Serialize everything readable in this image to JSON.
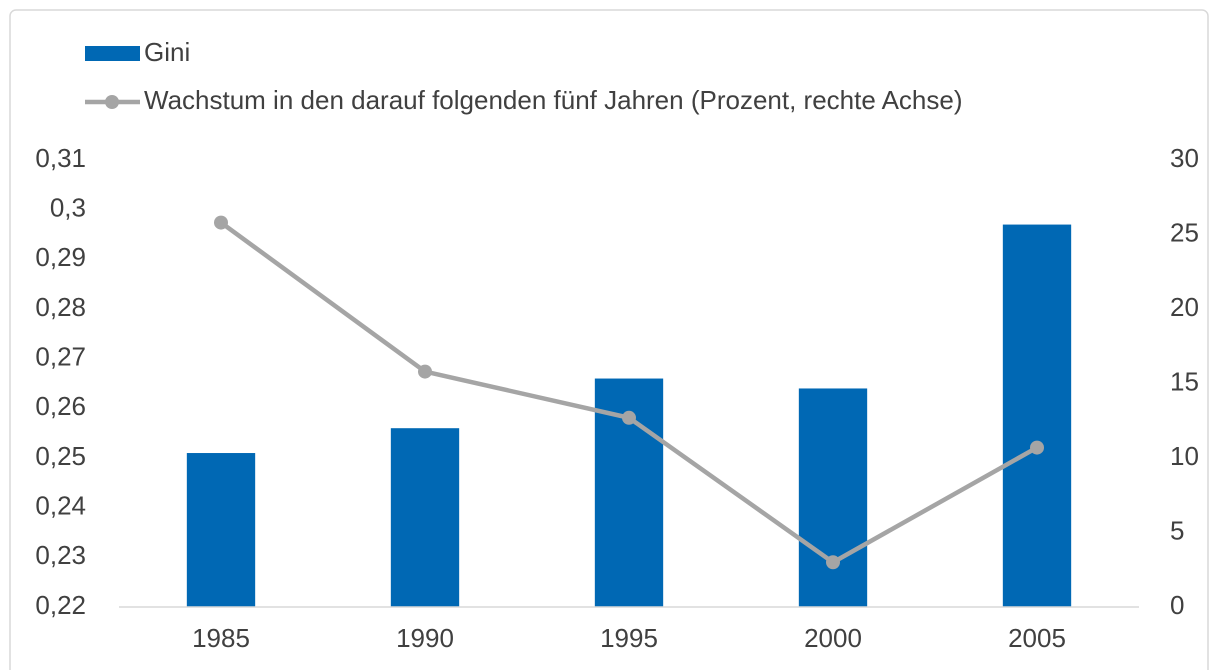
{
  "chart_data": {
    "type": "combo",
    "categories": [
      "1985",
      "1990",
      "1995",
      "2000",
      "2005"
    ],
    "series": [
      {
        "name": "Gini",
        "type": "bar",
        "color": "#0068b4",
        "values": [
          0.251,
          0.256,
          0.266,
          0.264,
          0.297
        ]
      },
      {
        "name": "Wachstum in den darauf folgenden fünf Jahren (Prozent, rechte Achse)",
        "type": "line",
        "axis": "y2",
        "color": "#a5a5a5",
        "values": [
          25.8,
          15.8,
          12.7,
          3.0,
          10.7
        ]
      }
    ],
    "ylim": [
      0.22,
      0.31
    ],
    "yticks": [
      {
        "value": 0.22,
        "label": "0,22"
      },
      {
        "value": 0.23,
        "label": "0,23"
      },
      {
        "value": 0.24,
        "label": "0,24"
      },
      {
        "value": 0.25,
        "label": "0,25"
      },
      {
        "value": 0.26,
        "label": "0,26"
      },
      {
        "value": 0.27,
        "label": "0,27"
      },
      {
        "value": 0.28,
        "label": "0,28"
      },
      {
        "value": 0.29,
        "label": "0,29"
      },
      {
        "value": 0.3,
        "label": "0,3"
      },
      {
        "value": 0.31,
        "label": "0,31"
      }
    ],
    "y2lim": [
      0,
      30
    ],
    "y2ticks": [
      0,
      5,
      10,
      15,
      20,
      25,
      30
    ],
    "legend": "top-left",
    "grid": false
  }
}
